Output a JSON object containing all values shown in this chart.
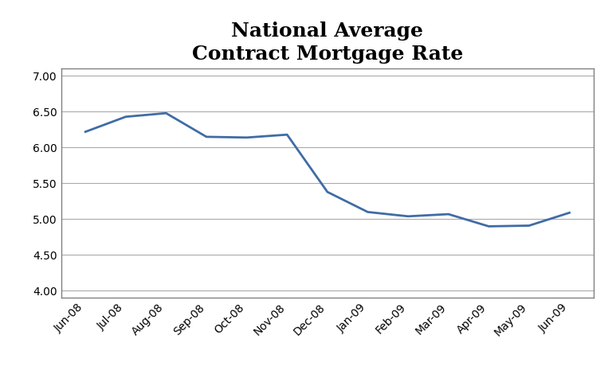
{
  "title": "National Average\nContract Mortgage Rate",
  "categories": [
    "Jun-08",
    "Jul-08",
    "Aug-08",
    "Sep-08",
    "Oct-08",
    "Nov-08",
    "Dec-08",
    "Jan-09",
    "Feb-09",
    "Mar-09",
    "Apr-09",
    "May-09",
    "Jun-09"
  ],
  "values": [
    6.22,
    6.43,
    6.48,
    6.15,
    6.14,
    6.18,
    5.38,
    5.1,
    5.04,
    5.07,
    4.9,
    4.91,
    5.09
  ],
  "line_color": "#3F6CA6",
  "line_width": 2.0,
  "ylim": [
    3.9,
    7.1
  ],
  "yticks": [
    4.0,
    4.5,
    5.0,
    5.5,
    6.0,
    6.5,
    7.0
  ],
  "background_color": "#FFFFFF",
  "title_fontsize": 18,
  "tick_fontsize": 10,
  "grid_color": "#AAAAAA",
  "border_color": "#808080"
}
